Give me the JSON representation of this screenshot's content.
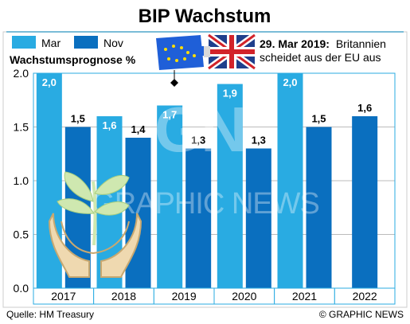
{
  "chart_data": {
    "type": "bar",
    "title": "BIP Wachstum",
    "ylabel": "Wachstumsprognose %",
    "ylim": [
      0,
      2.0
    ],
    "yticks": [
      0.0,
      0.5,
      1.0,
      1.5,
      2.0
    ],
    "ytick_labels": [
      "0.0",
      "0.5",
      "1.0",
      "1.5",
      "2.0"
    ],
    "categories": [
      "2017",
      "2018",
      "2019",
      "2020",
      "2021",
      "2022"
    ],
    "series": [
      {
        "name": "Mar",
        "values": [
          2.0,
          1.6,
          1.7,
          1.9,
          2.0,
          null
        ],
        "labels": [
          "2,0",
          "1,6",
          "1,7",
          "1,9",
          "2,0",
          ""
        ]
      },
      {
        "name": "Nov",
        "values": [
          1.5,
          1.4,
          1.3,
          1.3,
          1.5,
          1.6
        ],
        "labels": [
          "1,5",
          "1,4",
          "1,3",
          "1,3",
          "1,5",
          "1,6"
        ]
      }
    ],
    "legend_position": "top-left",
    "grid": true,
    "annotation": {
      "date": "29. Mar 2019:",
      "line1_rest": "Britannien",
      "line2": "scheidet aus der EU aus",
      "category": "2019"
    },
    "source": "Quelle: HM Treasury",
    "credit": "© GRAPHIC NEWS",
    "watermark": "GRAPHIC NEWS",
    "colors": {
      "Mar": "#29abe2",
      "Nov": "#0a6fbf",
      "bar_label": "#ffffff",
      "eu_flag": "#1f5fd8",
      "eu_stars": "#ffdd00",
      "uk_blue": "#1f3f8c",
      "uk_red": "#d2232a",
      "plant_green": "#8bc34a",
      "hands_tan": "#d4b483",
      "axis_box": "#29abe2"
    },
    "icons": [
      "eu-flag-icon",
      "uk-flag-icon",
      "plant-hands-icon"
    ]
  }
}
